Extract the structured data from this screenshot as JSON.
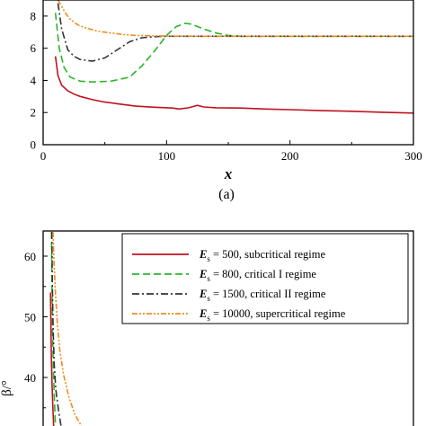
{
  "chart_data": [
    {
      "type": "line",
      "panel": "top",
      "caption": "(a)",
      "xlabel": "x",
      "xlim": [
        0,
        300
      ],
      "ylim": [
        0,
        9
      ],
      "x_ticks": [
        "0",
        "100",
        "200",
        "300"
      ],
      "y_ticks": [
        "0",
        "2",
        "4",
        "6",
        "8"
      ],
      "series": [
        {
          "key": "s500",
          "color": "#c0111f",
          "dash": "",
          "x": [
            10,
            12,
            15,
            20,
            25,
            30,
            40,
            50,
            60,
            75,
            90,
            105,
            110,
            118,
            125,
            130,
            140,
            160,
            180,
            200,
            225,
            250,
            275,
            300
          ],
          "y": [
            5.5,
            4.3,
            3.7,
            3.35,
            3.15,
            3.0,
            2.8,
            2.65,
            2.55,
            2.4,
            2.33,
            2.28,
            2.22,
            2.3,
            2.45,
            2.35,
            2.3,
            2.28,
            2.22,
            2.18,
            2.12,
            2.08,
            2.02,
            1.97
          ]
        },
        {
          "key": "s800",
          "color": "#2ab52a",
          "dash": "8,4",
          "x": [
            10,
            13,
            17,
            22,
            30,
            40,
            55,
            70,
            80,
            90,
            100,
            108,
            115,
            120,
            130,
            140,
            150,
            160,
            180,
            200,
            250,
            300
          ],
          "y": [
            8.2,
            6.0,
            4.8,
            4.2,
            3.95,
            3.9,
            3.95,
            4.2,
            4.9,
            5.8,
            6.8,
            7.35,
            7.55,
            7.5,
            7.2,
            6.95,
            6.8,
            6.75,
            6.75,
            6.75,
            6.75,
            6.75
          ]
        },
        {
          "key": "s1500",
          "color": "#333333",
          "dash": "8,3,2,3",
          "x": [
            12,
            15,
            20,
            25,
            30,
            40,
            50,
            60,
            70,
            80,
            90,
            100,
            130,
            160,
            200,
            250,
            300
          ],
          "y": [
            8.8,
            7.2,
            5.9,
            5.5,
            5.3,
            5.2,
            5.4,
            5.9,
            6.4,
            6.65,
            6.72,
            6.75,
            6.75,
            6.75,
            6.75,
            6.75,
            6.75
          ]
        },
        {
          "key": "s10000",
          "color": "#f08c1e",
          "dash": "6,2,2,2,2,2",
          "x": [
            12,
            15,
            18,
            22,
            28,
            35,
            45,
            55,
            65,
            75,
            85,
            100,
            130,
            160,
            200,
            250,
            300
          ],
          "y": [
            9.0,
            8.6,
            8.2,
            7.8,
            7.45,
            7.25,
            7.05,
            6.95,
            6.85,
            6.8,
            6.78,
            6.76,
            6.75,
            6.75,
            6.75,
            6.75,
            6.75
          ]
        }
      ]
    },
    {
      "type": "line",
      "panel": "bottom",
      "ylabel": "β/°",
      "ylim": [
        32,
        64
      ],
      "y_ticks": [
        "40",
        "50",
        "60"
      ],
      "legend_position": "top-right",
      "legend": [
        {
          "key": "s500",
          "es": "E",
          "sub": "s",
          "text": " = 500, subcritical regime"
        },
        {
          "key": "s800",
          "es": "E",
          "sub": "s",
          "text": " = 800, critical I regime"
        },
        {
          "key": "s1500",
          "es": "E",
          "sub": "s",
          "text": " = 1500, critical II regime"
        },
        {
          "key": "s10000",
          "es": "E",
          "sub": "s",
          "text": " = 10000, supercritical regime"
        }
      ],
      "series": [
        {
          "key": "s500",
          "color": "#c0111f",
          "dash": "",
          "x": [
            6.0,
            6.3,
            6.7,
            7.2,
            7.8,
            8.5
          ],
          "y": [
            54,
            48,
            43,
            39,
            35.5,
            32
          ]
        },
        {
          "key": "s800",
          "color": "#2ab52a",
          "dash": "8,4",
          "x": [
            6.8,
            7.1,
            7.6,
            8.2,
            9.0,
            10.0
          ],
          "y": [
            64,
            56,
            48,
            42,
            37,
            32
          ]
        },
        {
          "key": "s1500",
          "color": "#333333",
          "dash": "8,3,2,3",
          "x": [
            7.0,
            7.5,
            8.1,
            9.0,
            10.3,
            12.5,
            14.5
          ],
          "y": [
            64,
            55,
            48,
            42,
            38,
            34.5,
            32
          ]
        },
        {
          "key": "s10000",
          "color": "#f08c1e",
          "dash": "6,2,2,2,2,2",
          "x": [
            8.0,
            8.8,
            10.0,
            11.5,
            13.5,
            16.5,
            20.5,
            25.5,
            31.0
          ],
          "y": [
            64,
            59,
            54,
            49,
            44.5,
            40.5,
            37,
            34,
            32
          ]
        }
      ]
    }
  ]
}
